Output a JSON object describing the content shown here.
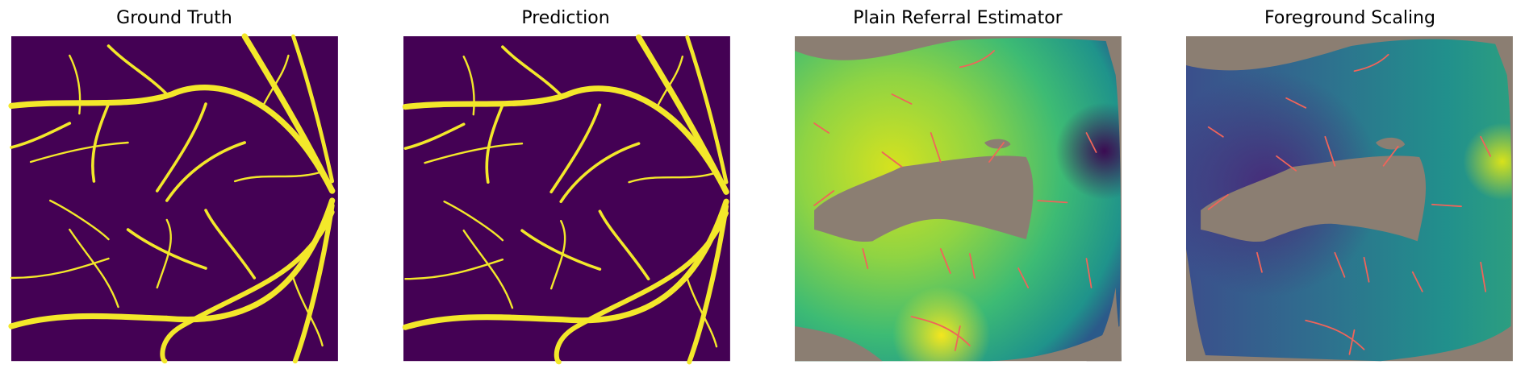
{
  "panels": [
    {
      "title": "Ground Truth"
    },
    {
      "title": "Prediction"
    },
    {
      "title": "Plain Referral Estimator"
    },
    {
      "title": "Foreground Scaling"
    }
  ]
}
